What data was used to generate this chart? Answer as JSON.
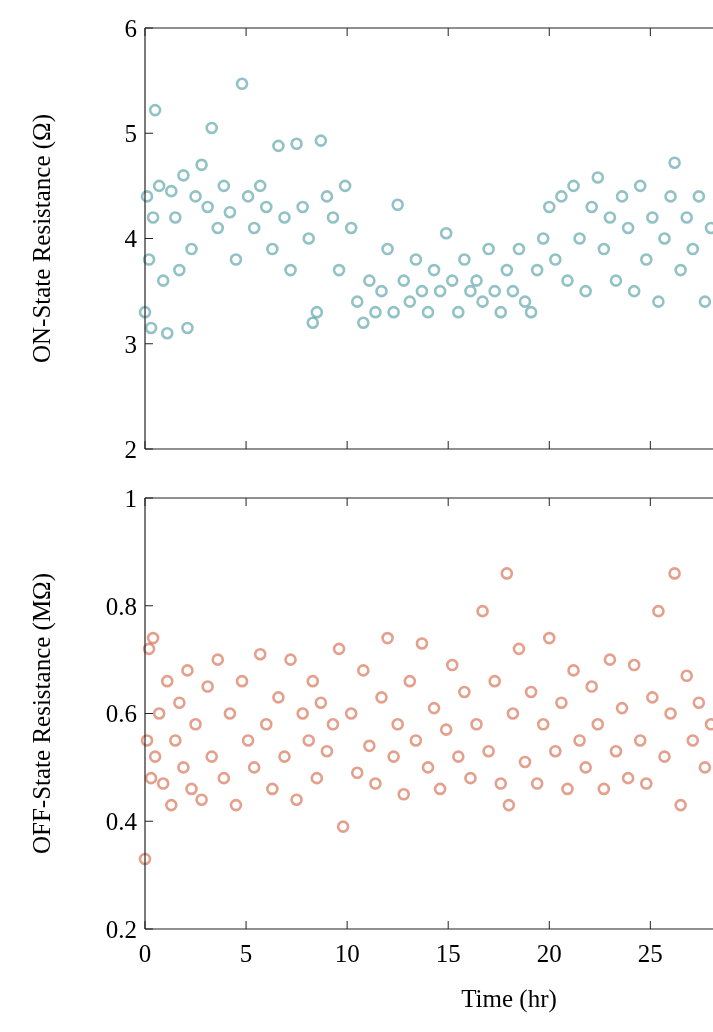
{
  "chart_data": [
    {
      "type": "scatter",
      "ylabel": "ON-State Resistance (Ω)",
      "xlim": [
        0,
        28.1
      ],
      "ylim": [
        2,
        6
      ],
      "yticks": [
        2,
        3,
        4,
        5,
        6
      ],
      "xticks": [
        0,
        5,
        10,
        15,
        20,
        25
      ],
      "tick_labels": "y",
      "marker": "circle",
      "series": [
        {
          "color": "#4a9aa0",
          "x": [
            0,
            0.1,
            0.2,
            0.3,
            0.4,
            0.5,
            0.7,
            0.9,
            1.1,
            1.3,
            1.5,
            1.7,
            1.9,
            2.1,
            2.3,
            2.5,
            2.8,
            3.1,
            3.3,
            3.6,
            3.9,
            4.2,
            4.5,
            4.8,
            5.1,
            5.4,
            5.7,
            6,
            6.3,
            6.6,
            6.9,
            7.2,
            7.5,
            7.8,
            8.1,
            8.3,
            8.5,
            8.7,
            9,
            9.3,
            9.6,
            9.9,
            10.2,
            10.5,
            10.8,
            11.1,
            11.4,
            11.7,
            12,
            12.3,
            12.5,
            12.8,
            13.1,
            13.4,
            13.7,
            14,
            14.3,
            14.6,
            14.9,
            15.2,
            15.5,
            15.8,
            16.1,
            16.4,
            16.7,
            17,
            17.3,
            17.6,
            17.9,
            18.2,
            18.5,
            18.8,
            19.1,
            19.4,
            19.7,
            20,
            20.3,
            20.6,
            20.9,
            21.2,
            21.5,
            21.8,
            22.1,
            22.4,
            22.7,
            23,
            23.3,
            23.6,
            23.9,
            24.2,
            24.5,
            24.8,
            25.1,
            25.4,
            25.7,
            26,
            26.2,
            26.5,
            26.8,
            27.1,
            27.4,
            27.7,
            28
          ],
          "values": [
            3.3,
            4.4,
            3.8,
            3.15,
            4.2,
            5.22,
            4.5,
            3.6,
            3.1,
            4.45,
            4.2,
            3.7,
            4.6,
            3.15,
            3.9,
            4.4,
            4.7,
            4.3,
            5.05,
            4.1,
            4.5,
            4.25,
            3.8,
            5.47,
            4.4,
            4.1,
            4.5,
            4.3,
            3.9,
            4.88,
            4.2,
            3.7,
            4.9,
            4.3,
            4.0,
            3.2,
            3.3,
            4.93,
            4.4,
            4.2,
            3.7,
            4.5,
            4.1,
            3.4,
            3.2,
            3.6,
            3.3,
            3.5,
            3.9,
            3.3,
            4.32,
            3.6,
            3.4,
            3.8,
            3.5,
            3.3,
            3.7,
            3.5,
            4.05,
            3.6,
            3.3,
            3.8,
            3.5,
            3.6,
            3.4,
            3.9,
            3.5,
            3.3,
            3.7,
            3.5,
            3.9,
            3.4,
            3.3,
            3.7,
            4.0,
            4.3,
            3.8,
            4.4,
            3.6,
            4.5,
            4.0,
            3.5,
            4.3,
            4.58,
            3.9,
            4.2,
            3.6,
            4.4,
            4.1,
            3.5,
            4.5,
            3.8,
            4.2,
            3.4,
            4.0,
            4.4,
            4.72,
            3.7,
            4.2,
            3.9,
            4.4,
            3.4,
            4.1
          ]
        }
      ]
    },
    {
      "type": "scatter",
      "xlabel": "Time (hr)",
      "ylabel": "OFF-State Resistance (MΩ)",
      "xlim": [
        0,
        28.1
      ],
      "ylim": [
        0.2,
        1
      ],
      "yticks": [
        0.2,
        0.4,
        0.6,
        0.8,
        1
      ],
      "xticks": [
        0,
        5,
        10,
        15,
        20,
        25
      ],
      "marker": "circle",
      "series": [
        {
          "color": "#d0603f",
          "x": [
            0,
            0.1,
            0.2,
            0.3,
            0.4,
            0.5,
            0.7,
            0.9,
            1.1,
            1.3,
            1.5,
            1.7,
            1.9,
            2.1,
            2.3,
            2.5,
            2.8,
            3.1,
            3.3,
            3.6,
            3.9,
            4.2,
            4.5,
            4.8,
            5.1,
            5.4,
            5.7,
            6,
            6.3,
            6.6,
            6.9,
            7.2,
            7.5,
            7.8,
            8.1,
            8.3,
            8.5,
            8.7,
            9,
            9.3,
            9.6,
            9.8,
            10.2,
            10.5,
            10.8,
            11.1,
            11.4,
            11.7,
            12,
            12.3,
            12.5,
            12.8,
            13.1,
            13.4,
            13.7,
            14,
            14.3,
            14.6,
            14.9,
            15.2,
            15.5,
            15.8,
            16.1,
            16.4,
            16.7,
            17,
            17.3,
            17.6,
            17.9,
            18,
            18.2,
            18.5,
            18.8,
            19.1,
            19.4,
            19.7,
            20,
            20.3,
            20.6,
            20.9,
            21.2,
            21.5,
            21.8,
            22.1,
            22.4,
            22.7,
            23,
            23.3,
            23.6,
            23.9,
            24.2,
            24.5,
            24.8,
            25.1,
            25.4,
            25.7,
            26,
            26.2,
            26.5,
            26.8,
            27.1,
            27.4,
            27.7,
            28
          ],
          "values": [
            0.33,
            0.55,
            0.72,
            0.48,
            0.74,
            0.52,
            0.6,
            0.47,
            0.66,
            0.43,
            0.55,
            0.62,
            0.5,
            0.68,
            0.46,
            0.58,
            0.44,
            0.65,
            0.52,
            0.7,
            0.48,
            0.6,
            0.43,
            0.66,
            0.55,
            0.5,
            0.71,
            0.58,
            0.46,
            0.63,
            0.52,
            0.7,
            0.44,
            0.6,
            0.55,
            0.66,
            0.48,
            0.62,
            0.53,
            0.58,
            0.72,
            0.39,
            0.6,
            0.49,
            0.68,
            0.54,
            0.47,
            0.63,
            0.74,
            0.52,
            0.58,
            0.45,
            0.66,
            0.55,
            0.73,
            0.5,
            0.61,
            0.46,
            0.57,
            0.69,
            0.52,
            0.64,
            0.48,
            0.58,
            0.79,
            0.53,
            0.66,
            0.47,
            0.86,
            0.43,
            0.6,
            0.72,
            0.51,
            0.64,
            0.47,
            0.58,
            0.74,
            0.53,
            0.62,
            0.46,
            0.68,
            0.55,
            0.5,
            0.65,
            0.58,
            0.46,
            0.7,
            0.53,
            0.61,
            0.48,
            0.69,
            0.55,
            0.47,
            0.63,
            0.79,
            0.52,
            0.6,
            0.86,
            0.43,
            0.67,
            0.55,
            0.62,
            0.5,
            0.58
          ]
        }
      ]
    }
  ]
}
